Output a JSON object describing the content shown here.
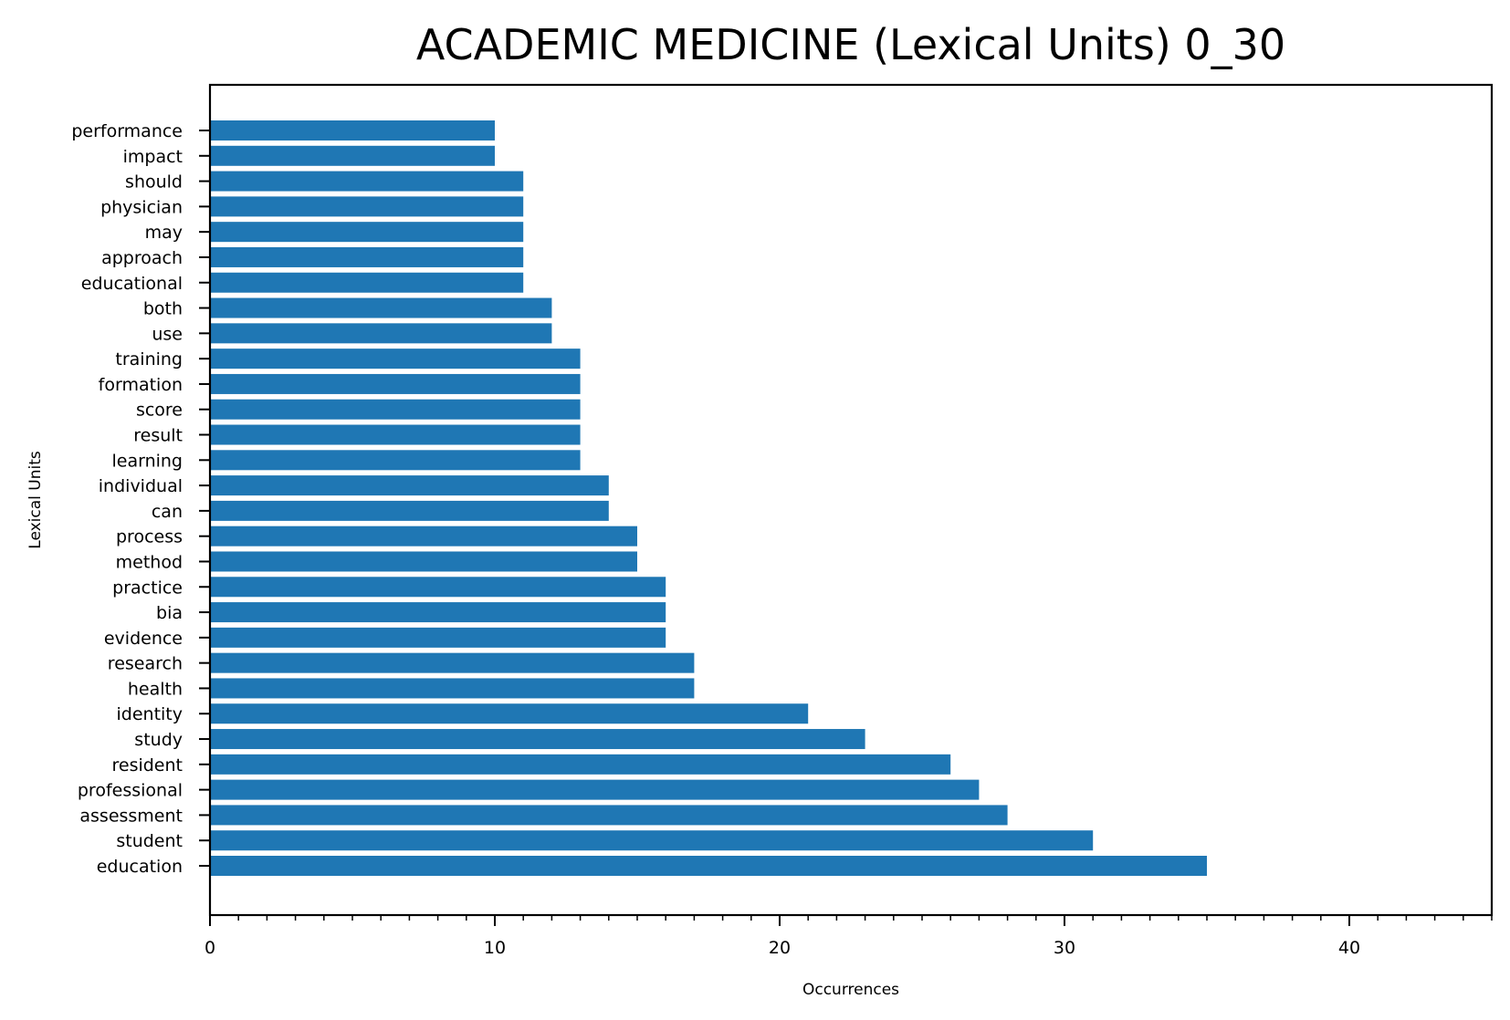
{
  "chart_data": {
    "type": "bar",
    "orientation": "horizontal",
    "title": "ACADEMIC MEDICINE (Lexical Units) 0_30",
    "xlabel": "Occurrences",
    "ylabel": "Lexical Units",
    "xlim": [
      0,
      45
    ],
    "xticks": [
      0,
      10,
      20,
      30,
      40
    ],
    "grid": false,
    "bar_color": "#1f77b4",
    "categories": [
      "education",
      "student",
      "assessment",
      "professional",
      "resident",
      "study",
      "identity",
      "health",
      "research",
      "evidence",
      "bia",
      "practice",
      "method",
      "process",
      "can",
      "individual",
      "learning",
      "result",
      "score",
      "formation",
      "training",
      "use",
      "both",
      "educational",
      "approach",
      "may",
      "physician",
      "should",
      "impact",
      "performance"
    ],
    "values": [
      35,
      31,
      28,
      27,
      26,
      23,
      21,
      17,
      17,
      16,
      16,
      16,
      15,
      15,
      14,
      14,
      13,
      13,
      13,
      13,
      13,
      12,
      12,
      11,
      11,
      11,
      11,
      11,
      10,
      10
    ]
  }
}
